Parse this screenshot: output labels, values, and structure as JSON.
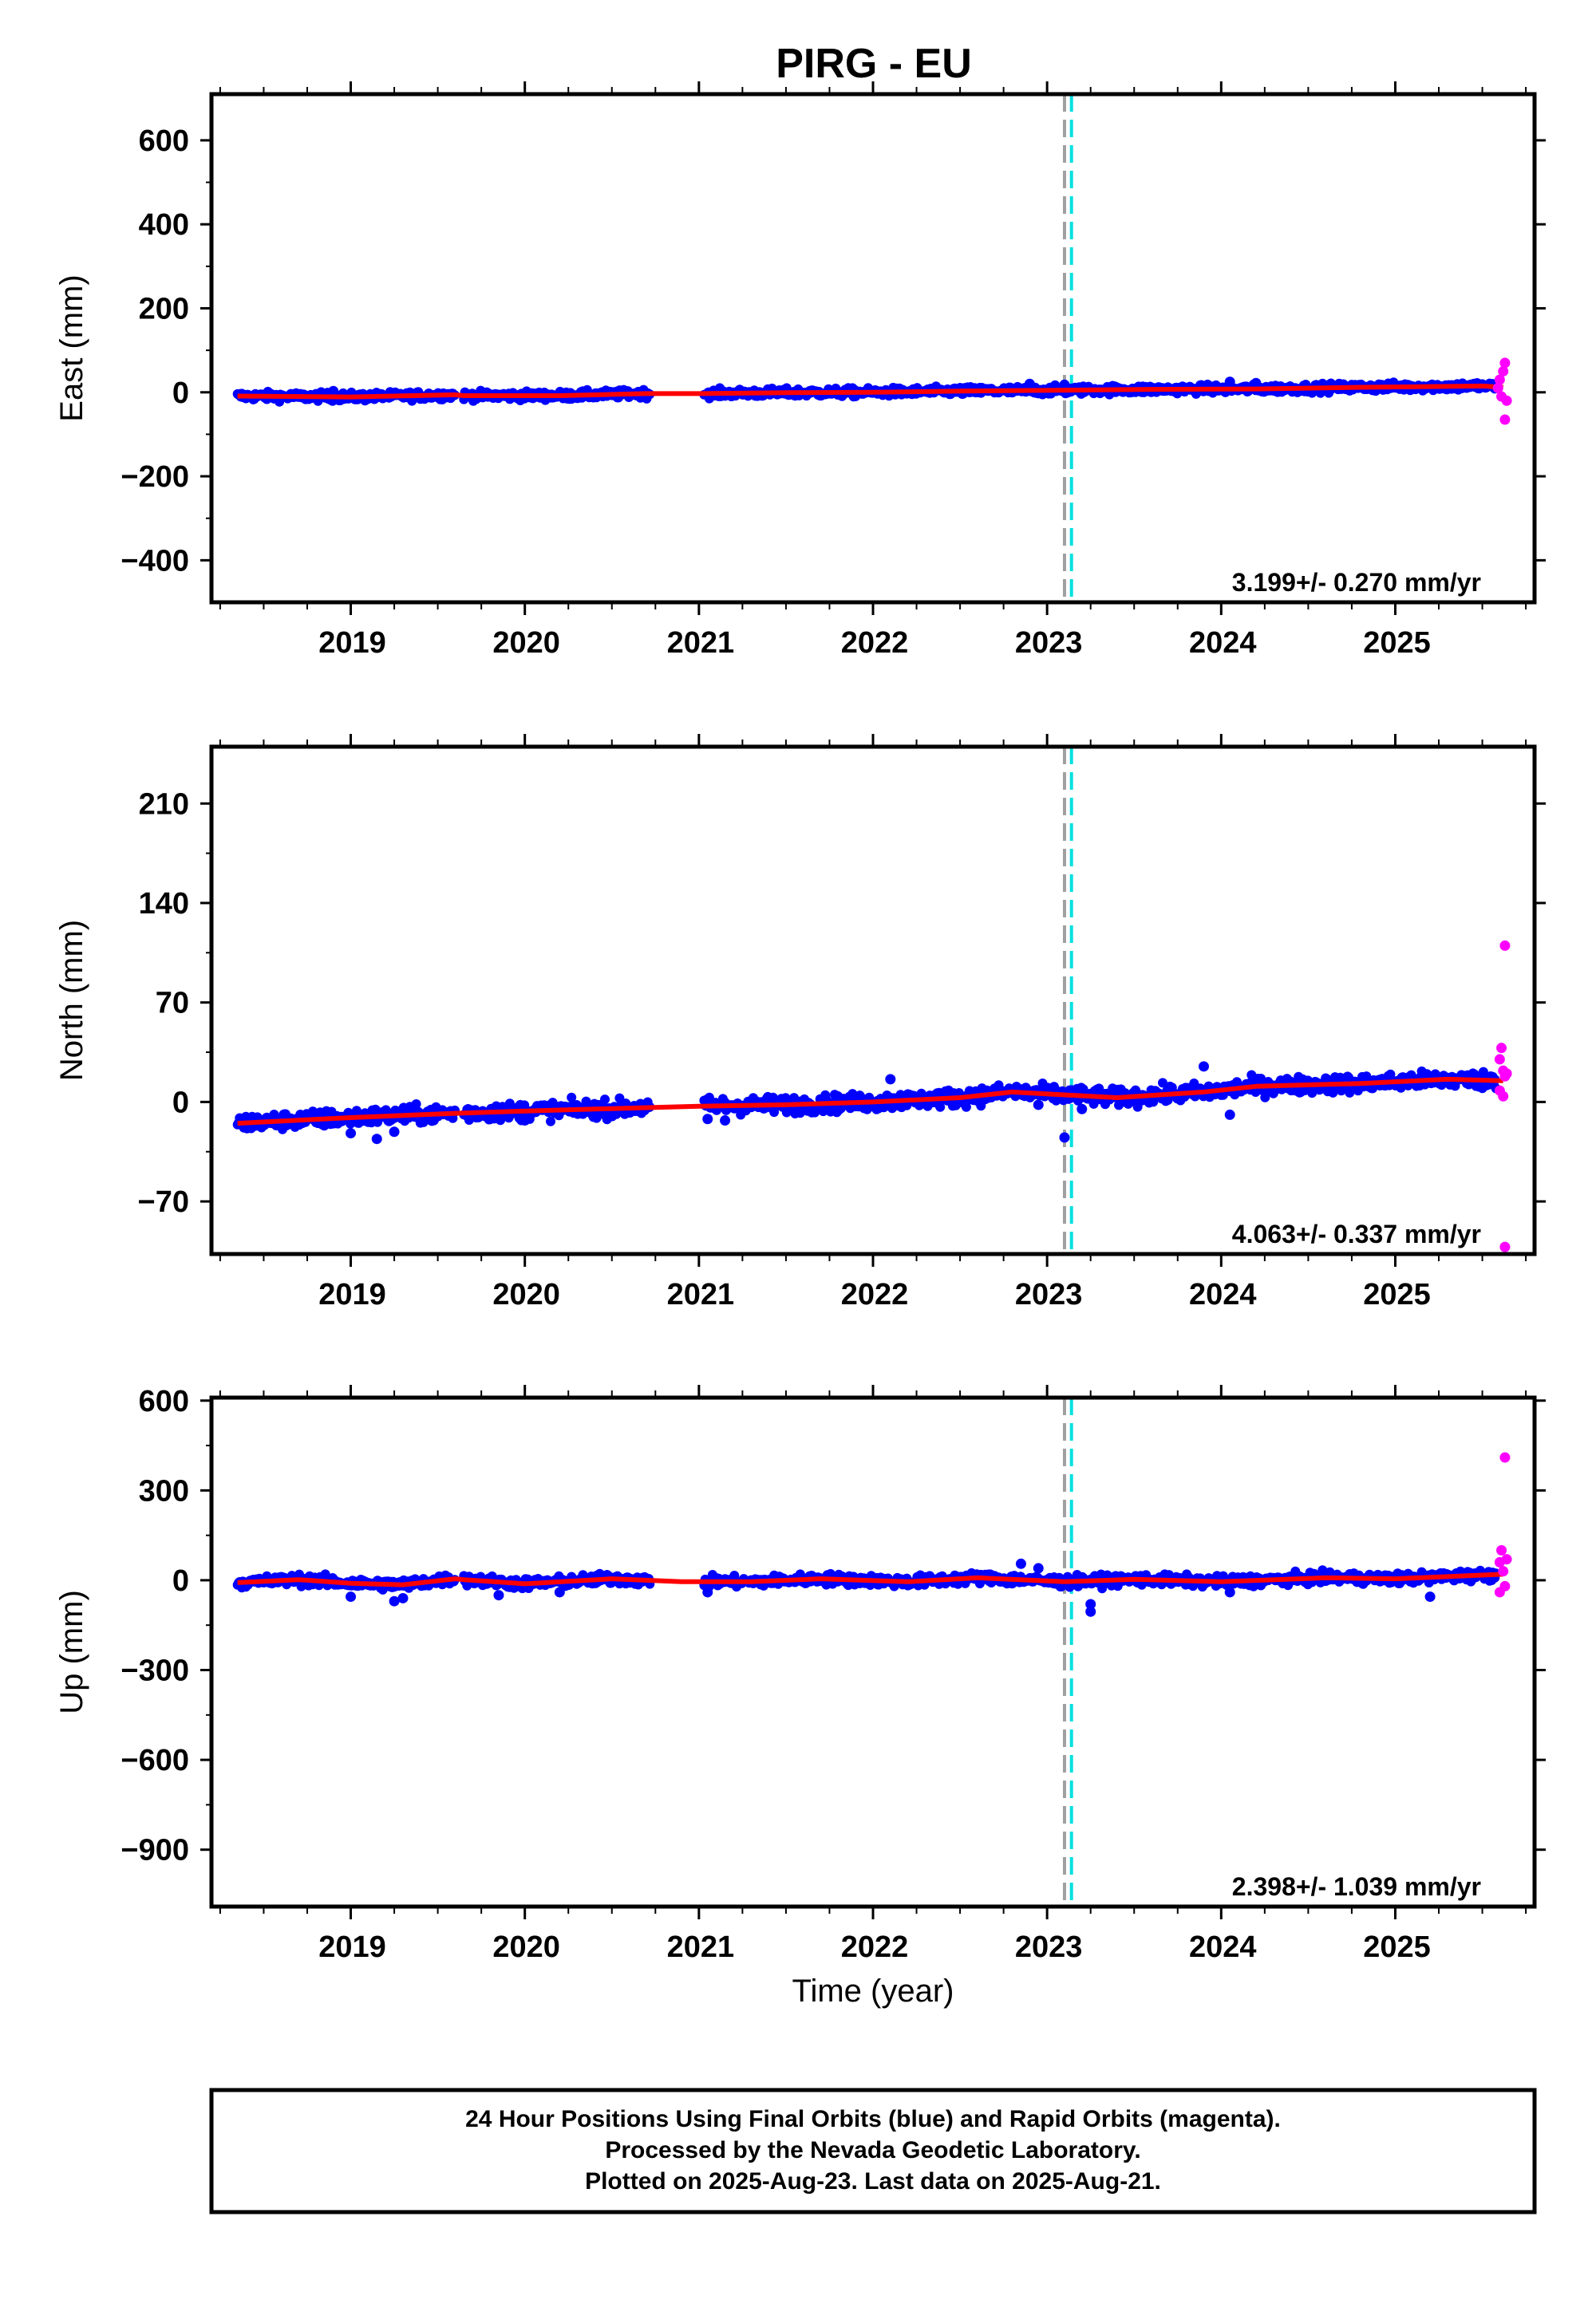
{
  "title": "PIRG - EU",
  "colors": {
    "final": "#0000ff",
    "rapid": "#ff00ff",
    "model": "#ff0000",
    "line_gray": "#a0a0a0",
    "line_cyan": "#00e0e0"
  },
  "chart_data": [
    {
      "type": "scatter",
      "ylabel": "East (mm)",
      "xlim": [
        2018.2,
        2025.8
      ],
      "ylim": [
        -500,
        710
      ],
      "yticks": [
        -400,
        -200,
        0,
        200,
        400,
        600
      ],
      "ytick_labels": [
        "−400",
        "−200",
        "0",
        "200",
        "400",
        "600"
      ],
      "rate": "3.199+/- 0.270 mm/yr",
      "model": [
        [
          2018.35,
          -9
        ],
        [
          2019.0,
          -11
        ],
        [
          2019.6,
          -6
        ],
        [
          2019.65,
          -8
        ],
        [
          2020.2,
          -8
        ],
        [
          2020.7,
          -3
        ],
        [
          2021.0,
          -3
        ],
        [
          2021.5,
          -1
        ],
        [
          2022.0,
          0
        ],
        [
          2022.5,
          3
        ],
        [
          2023.1,
          5
        ],
        [
          2023.6,
          7
        ],
        [
          2024.2,
          8
        ],
        [
          2024.8,
          12
        ],
        [
          2025.5,
          15
        ],
        [
          2025.62,
          12
        ]
      ],
      "final_points": [
        [
          2018.9,
          3
        ],
        [
          2019.55,
          -5
        ],
        [
          2022.9,
          20
        ],
        [
          2023.1,
          18
        ],
        [
          2024.05,
          25
        ],
        [
          2024.2,
          22
        ]
      ],
      "rapid_points": [
        [
          2025.59,
          10
        ],
        [
          2025.6,
          30
        ],
        [
          2025.61,
          -10
        ],
        [
          2025.62,
          50
        ],
        [
          2025.63,
          70
        ],
        [
          2025.64,
          -20
        ],
        [
          2025.63,
          -65
        ]
      ]
    },
    {
      "type": "scatter",
      "ylabel": "North (mm)",
      "xlim": [
        2018.2,
        2025.8
      ],
      "ylim": [
        -107,
        250
      ],
      "yticks": [
        -70,
        0,
        70,
        140,
        210
      ],
      "ytick_labels": [
        "−70",
        "0",
        "70",
        "140",
        "210"
      ],
      "rate": "4.063+/- 0.337 mm/yr",
      "model": [
        [
          2018.35,
          -15
        ],
        [
          2019.0,
          -11
        ],
        [
          2019.6,
          -8
        ],
        [
          2020.1,
          -6
        ],
        [
          2020.7,
          -4
        ],
        [
          2021.0,
          -3
        ],
        [
          2021.5,
          -2
        ],
        [
          2022.0,
          0
        ],
        [
          2022.5,
          3
        ],
        [
          2022.8,
          7
        ],
        [
          2023.1,
          5
        ],
        [
          2023.4,
          3
        ],
        [
          2023.9,
          7
        ],
        [
          2024.2,
          11
        ],
        [
          2024.8,
          13
        ],
        [
          2025.3,
          16
        ],
        [
          2025.62,
          15
        ]
      ],
      "final_points": [
        [
          2019.0,
          -22
        ],
        [
          2019.15,
          -26
        ],
        [
          2019.25,
          -21
        ],
        [
          2020.0,
          -13
        ],
        [
          2021.05,
          -12
        ],
        [
          2021.15,
          -13
        ],
        [
          2022.1,
          16
        ],
        [
          2022.95,
          -2
        ],
        [
          2023.1,
          -25
        ],
        [
          2023.2,
          -5
        ],
        [
          2023.9,
          25
        ],
        [
          2024.05,
          -9
        ]
      ],
      "rapid_points": [
        [
          2025.6,
          30
        ],
        [
          2025.61,
          38
        ],
        [
          2025.62,
          22
        ],
        [
          2025.63,
          18
        ],
        [
          2025.6,
          8
        ],
        [
          2025.62,
          4
        ],
        [
          2025.64,
          20
        ],
        [
          2025.63,
          110
        ],
        [
          2025.63,
          -102
        ]
      ]
    },
    {
      "type": "scatter",
      "ylabel": "Up (mm)",
      "xlabel": "Time (year)",
      "xlim": [
        2018.2,
        2025.8
      ],
      "ylim": [
        -1090,
        610
      ],
      "yticks": [
        -900,
        -600,
        -300,
        0,
        300,
        600
      ],
      "ytick_labels": [
        "−900",
        "−600",
        "−300",
        "0",
        "300",
        "600"
      ],
      "rate": "2.398+/- 1.039 mm/yr",
      "model": [
        [
          2018.35,
          -8
        ],
        [
          2018.7,
          2
        ],
        [
          2019.0,
          -10
        ],
        [
          2019.3,
          -15
        ],
        [
          2019.6,
          5
        ],
        [
          2019.65,
          2
        ],
        [
          2020.0,
          -12
        ],
        [
          2020.5,
          5
        ],
        [
          2020.9,
          -5
        ],
        [
          2021.3,
          -5
        ],
        [
          2021.7,
          5
        ],
        [
          2022.2,
          -5
        ],
        [
          2022.6,
          8
        ],
        [
          2023.1,
          -5
        ],
        [
          2023.5,
          3
        ],
        [
          2024.0,
          -5
        ],
        [
          2024.6,
          8
        ],
        [
          2025.0,
          5
        ],
        [
          2025.62,
          20
        ]
      ],
      "final_points": [
        [
          2019.0,
          -55
        ],
        [
          2019.25,
          -70
        ],
        [
          2019.3,
          -60
        ],
        [
          2019.85,
          -50
        ],
        [
          2020.2,
          -40
        ],
        [
          2021.05,
          -40
        ],
        [
          2022.85,
          55
        ],
        [
          2022.95,
          40
        ],
        [
          2023.25,
          -80
        ],
        [
          2023.25,
          -105
        ],
        [
          2024.05,
          -40
        ],
        [
          2025.2,
          -55
        ]
      ],
      "rapid_points": [
        [
          2025.6,
          60
        ],
        [
          2025.61,
          100
        ],
        [
          2025.62,
          30
        ],
        [
          2025.63,
          -20
        ],
        [
          2025.6,
          -40
        ],
        [
          2025.64,
          70
        ],
        [
          2025.63,
          410
        ]
      ]
    }
  ],
  "x_ticks": [
    2019,
    2020,
    2021,
    2022,
    2023,
    2024,
    2025
  ],
  "x_tick_labels": [
    "2019",
    "2020",
    "2021",
    "2022",
    "2023",
    "2024",
    "2025"
  ],
  "vlines": [
    {
      "x": 2023.1,
      "color": "gray"
    },
    {
      "x": 2023.14,
      "color": "cyan"
    }
  ],
  "caption": [
    "24 Hour Positions Using Final Orbits (blue) and Rapid Orbits (magenta).",
    "Processed by the Nevada Geodetic Laboratory.",
    "Plotted on 2025-Aug-23. Last data on 2025-Aug-21."
  ]
}
